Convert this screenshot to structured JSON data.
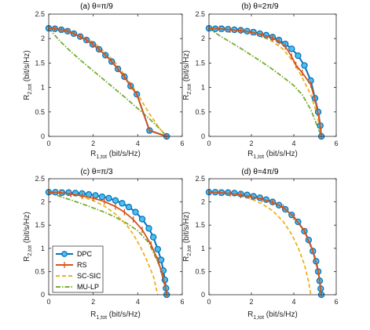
{
  "colors": {
    "DPC": "#0072BD",
    "DPC_marker_face": "#4DBEEE",
    "RS": "#D95319",
    "SC-SIC": "#EDB120",
    "MU-LP": "#77AC30",
    "axis": "#262626"
  },
  "chart_data": [
    {
      "type": "line",
      "title": "(a) θ=π/9",
      "xlabel": "R",
      "xlabel_sub": "1,tot",
      "xlabel_tail": " (bit/s/Hz)",
      "ylabel": "R",
      "ylabel_sub": "2,tot",
      "ylabel_tail": " (bit/s/Hz)",
      "xlim": [
        0,
        6
      ],
      "ylim": [
        0,
        2.5
      ],
      "xticks": [
        "0",
        "2",
        "4",
        "6"
      ],
      "yticks": [
        "0",
        "0.5",
        "1",
        "1.5",
        "2",
        "2.5"
      ],
      "grid": false,
      "series": [
        {
          "name": "DPC",
          "style": "solid-circle",
          "x": [
            0,
            0.28,
            0.57,
            0.85,
            1.13,
            1.42,
            1.7,
            1.98,
            2.26,
            2.55,
            2.83,
            3.11,
            3.4,
            3.68,
            3.96,
            4.53,
            5.3
          ],
          "y": [
            2.21,
            2.2,
            2.18,
            2.15,
            2.1,
            2.04,
            1.97,
            1.88,
            1.78,
            1.66,
            1.53,
            1.38,
            1.22,
            1.03,
            0.86,
            0.12,
            0.0
          ]
        },
        {
          "name": "RS",
          "style": "solid-plus",
          "x": [
            0,
            0.28,
            0.57,
            0.85,
            1.13,
            1.42,
            1.7,
            1.98,
            2.26,
            2.55,
            2.83,
            3.11,
            3.4,
            3.68,
            3.96,
            4.53,
            5.3
          ],
          "y": [
            2.21,
            2.2,
            2.18,
            2.15,
            2.1,
            2.04,
            1.97,
            1.88,
            1.78,
            1.66,
            1.53,
            1.38,
            1.22,
            1.03,
            0.86,
            0.12,
            0.0
          ]
        },
        {
          "name": "SC-SIC",
          "style": "dashed",
          "x": [
            0,
            0.5,
            1.0,
            1.5,
            2.0,
            2.5,
            3.0,
            3.5,
            4.0,
            4.5,
            5.0,
            5.3
          ],
          "y": [
            2.21,
            2.19,
            2.14,
            2.05,
            1.92,
            1.74,
            1.5,
            1.2,
            0.86,
            0.48,
            0.15,
            0.0
          ]
        },
        {
          "name": "MU-LP",
          "style": "dashdot",
          "x": [
            0,
            0.5,
            1.0,
            1.5,
            2.0,
            2.5,
            3.0,
            3.5,
            4.0,
            4.5,
            5.0,
            5.3
          ],
          "y": [
            2.21,
            1.95,
            1.73,
            1.53,
            1.34,
            1.15,
            0.96,
            0.77,
            0.57,
            0.37,
            0.15,
            0.0
          ]
        }
      ]
    },
    {
      "type": "line",
      "title": "(b) θ=2π/9",
      "xlabel": "R",
      "xlabel_sub": "1,tot",
      "xlabel_tail": " (bit/s/Hz)",
      "ylabel": "R",
      "ylabel_sub": "2,tot",
      "ylabel_tail": " (bit/s/Hz)",
      "xlim": [
        0,
        6
      ],
      "ylim": [
        0,
        2.5
      ],
      "xticks": [
        "0",
        "2",
        "4",
        "6"
      ],
      "yticks": [
        "0",
        "0.5",
        "1",
        "1.5",
        "2",
        "2.5"
      ],
      "grid": false,
      "series": [
        {
          "name": "DPC",
          "style": "solid-circle",
          "x": [
            0,
            0.3,
            0.6,
            0.9,
            1.2,
            1.5,
            1.8,
            2.1,
            2.4,
            2.7,
            3.0,
            3.3,
            3.6,
            3.9,
            4.2,
            4.5,
            4.8,
            5.0,
            5.15,
            5.25,
            5.3
          ],
          "y": [
            2.21,
            2.2,
            2.2,
            2.19,
            2.18,
            2.17,
            2.15,
            2.13,
            2.1,
            2.07,
            2.03,
            1.97,
            1.89,
            1.79,
            1.65,
            1.45,
            1.14,
            0.78,
            0.5,
            0.22,
            0.0
          ]
        },
        {
          "name": "RS",
          "style": "solid-plus",
          "x": [
            0,
            0.5,
            1.0,
            1.5,
            2.0,
            2.5,
            3.0,
            3.3,
            3.6,
            3.9,
            4.1,
            4.4,
            4.8,
            5.0,
            5.2,
            5.3
          ],
          "y": [
            2.21,
            2.2,
            2.18,
            2.16,
            2.13,
            2.08,
            2.01,
            1.94,
            1.84,
            1.63,
            1.46,
            1.3,
            1.06,
            0.75,
            0.35,
            0.0
          ]
        },
        {
          "name": "SC-SIC",
          "style": "dashed",
          "x": [
            0,
            0.5,
            1.0,
            1.5,
            2.0,
            2.5,
            3.0,
            3.5,
            4.0,
            4.4,
            4.8,
            5.1,
            5.3
          ],
          "y": [
            2.21,
            2.2,
            2.18,
            2.15,
            2.1,
            2.04,
            1.94,
            1.78,
            1.52,
            1.2,
            0.85,
            0.45,
            0.0
          ]
        },
        {
          "name": "MU-LP",
          "style": "dashdot",
          "x": [
            0,
            0.5,
            1.0,
            1.5,
            2.0,
            2.5,
            3.0,
            3.5,
            4.0,
            4.4,
            4.8,
            5.1,
            5.3
          ],
          "y": [
            2.21,
            2.06,
            1.93,
            1.8,
            1.66,
            1.52,
            1.37,
            1.21,
            1.04,
            0.85,
            0.55,
            0.22,
            0.0
          ]
        }
      ]
    },
    {
      "type": "line",
      "title": "(c) θ=π/3",
      "xlabel": "R",
      "xlabel_sub": "1,tot",
      "xlabel_tail": " (bit/s/Hz)",
      "ylabel": "R",
      "ylabel_sub": "2,tot",
      "ylabel_tail": " (bit/s/Hz)",
      "xlim": [
        0,
        6
      ],
      "ylim": [
        0,
        2.5
      ],
      "xticks": [
        "0",
        "2",
        "4",
        "6"
      ],
      "yticks": [
        "0",
        "0.5",
        "1",
        "1.5",
        "2",
        "2.5"
      ],
      "grid": false,
      "series": [
        {
          "name": "DPC",
          "style": "solid-circle",
          "x": [
            0,
            0.3,
            0.6,
            0.9,
            1.2,
            1.5,
            1.8,
            2.1,
            2.4,
            2.7,
            3.0,
            3.3,
            3.6,
            3.9,
            4.2,
            4.5,
            4.7,
            4.9,
            5.05,
            5.15,
            5.22,
            5.27,
            5.3
          ],
          "y": [
            2.21,
            2.21,
            2.2,
            2.2,
            2.19,
            2.18,
            2.16,
            2.14,
            2.11,
            2.08,
            2.03,
            1.97,
            1.89,
            1.78,
            1.63,
            1.43,
            1.24,
            0.98,
            0.75,
            0.52,
            0.32,
            0.14,
            0.0
          ]
        },
        {
          "name": "RS",
          "style": "solid-plus",
          "x": [
            0,
            0.5,
            1.0,
            1.5,
            2.0,
            2.5,
            3.0,
            3.4,
            3.8,
            4.2,
            4.6,
            4.9,
            5.1,
            5.25,
            5.3
          ],
          "y": [
            2.21,
            2.2,
            2.17,
            2.13,
            2.08,
            2.01,
            1.9,
            1.78,
            1.62,
            1.4,
            1.08,
            0.75,
            0.45,
            0.15,
            0.0
          ]
        },
        {
          "name": "SC-SIC",
          "style": "dashed",
          "x": [
            0,
            0.5,
            1.0,
            1.5,
            2.0,
            2.5,
            3.0,
            3.5,
            3.8,
            4.1,
            4.4,
            4.7,
            4.9
          ],
          "y": [
            2.21,
            2.19,
            2.16,
            2.11,
            2.03,
            1.91,
            1.74,
            1.5,
            1.3,
            1.05,
            0.75,
            0.4,
            0.0
          ]
        },
        {
          "name": "MU-LP",
          "style": "dashdot",
          "x": [
            0,
            0.5,
            1.0,
            1.5,
            2.0,
            2.5,
            3.0,
            3.5,
            4.0,
            4.5,
            5.0,
            5.3
          ],
          "y": [
            2.21,
            2.12,
            2.04,
            1.96,
            1.87,
            1.78,
            1.67,
            1.54,
            1.38,
            1.12,
            0.6,
            0.0
          ]
        }
      ]
    },
    {
      "type": "line",
      "title": "(d) θ=4π/9",
      "xlabel": "R",
      "xlabel_sub": "1,tot",
      "xlabel_tail": " (bit/s/Hz)",
      "ylabel": "R",
      "ylabel_sub": "2,tot",
      "ylabel_tail": " (bit/s/Hz)",
      "xlim": [
        0,
        6
      ],
      "ylim": [
        0,
        2.5
      ],
      "xticks": [
        "0",
        "2",
        "4",
        "6"
      ],
      "yticks": [
        "0",
        "0.5",
        "1",
        "1.5",
        "2",
        "2.5"
      ],
      "grid": false,
      "series": [
        {
          "name": "DPC",
          "style": "solid-circle",
          "x": [
            0,
            0.3,
            0.6,
            0.9,
            1.2,
            1.5,
            1.8,
            2.1,
            2.4,
            2.7,
            3.0,
            3.3,
            3.6,
            3.9,
            4.2,
            4.5,
            4.7,
            4.9,
            5.05,
            5.15,
            5.22,
            5.27,
            5.3
          ],
          "y": [
            2.21,
            2.21,
            2.2,
            2.2,
            2.19,
            2.17,
            2.15,
            2.12,
            2.09,
            2.05,
            2.0,
            1.93,
            1.84,
            1.72,
            1.57,
            1.37,
            1.18,
            0.94,
            0.72,
            0.5,
            0.3,
            0.13,
            0.0
          ]
        },
        {
          "name": "RS",
          "style": "solid-plus",
          "x": [
            0,
            0.5,
            1.0,
            1.5,
            2.0,
            2.5,
            3.0,
            3.5,
            4.0,
            4.5,
            4.9,
            5.15,
            5.3
          ],
          "y": [
            2.21,
            2.2,
            2.18,
            2.15,
            2.11,
            2.06,
            1.99,
            1.88,
            1.68,
            1.37,
            0.94,
            0.5,
            0.0
          ]
        },
        {
          "name": "SC-SIC",
          "style": "dashed",
          "x": [
            0,
            0.5,
            1.0,
            1.5,
            2.0,
            2.5,
            3.0,
            3.5,
            3.9,
            4.2,
            4.5,
            4.7,
            4.8
          ],
          "y": [
            2.21,
            2.2,
            2.17,
            2.13,
            2.06,
            1.96,
            1.81,
            1.58,
            1.3,
            1.02,
            0.65,
            0.28,
            0.0
          ]
        },
        {
          "name": "MU-LP",
          "style": "dashdot",
          "x": [
            0,
            0.5,
            1.0,
            1.5,
            2.0,
            2.5,
            3.0,
            3.5,
            4.0,
            4.5,
            4.9,
            5.15,
            5.3
          ],
          "y": [
            2.21,
            2.2,
            2.18,
            2.15,
            2.11,
            2.06,
            1.99,
            1.88,
            1.68,
            1.37,
            0.94,
            0.5,
            0.0
          ]
        }
      ]
    }
  ],
  "legend": {
    "entries": [
      "DPC",
      "RS",
      "SC-SIC",
      "MU-LP"
    ],
    "placement": "inside bottom-left of panel (c)"
  }
}
